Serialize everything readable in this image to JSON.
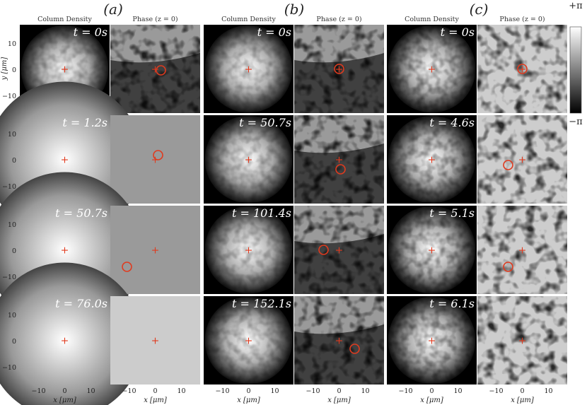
{
  "groups": [
    {
      "label": "(a)",
      "density_header": "Column Density",
      "phase_header": "Phase (z = 0)",
      "times": [
        "t = 0s",
        "t = 1.2s",
        "t = 50.7s",
        "t = 76.0s"
      ]
    },
    {
      "label": "(b)",
      "density_header": "Column Density",
      "phase_header": "Phase (z = 0)",
      "times": [
        "t = 0s",
        "t = 50.7s",
        "t = 101.4s",
        "t = 152.1s"
      ]
    },
    {
      "label": "(c)",
      "density_header": "Column Density",
      "phase_header": "Phase (z = 0)",
      "times": [
        "t = 0s",
        "t = 4.6s",
        "t = 5.1s",
        "t = 6.1s"
      ]
    }
  ],
  "x_axis_label": "x [μm]",
  "x_ticks": [
    "−10",
    "0",
    "10"
  ],
  "y_axis_label": "y [μm]",
  "y_ticks": [
    "10",
    "0",
    "−10"
  ],
  "colorbar": {
    "top": "+π",
    "bottom": "−π"
  }
}
